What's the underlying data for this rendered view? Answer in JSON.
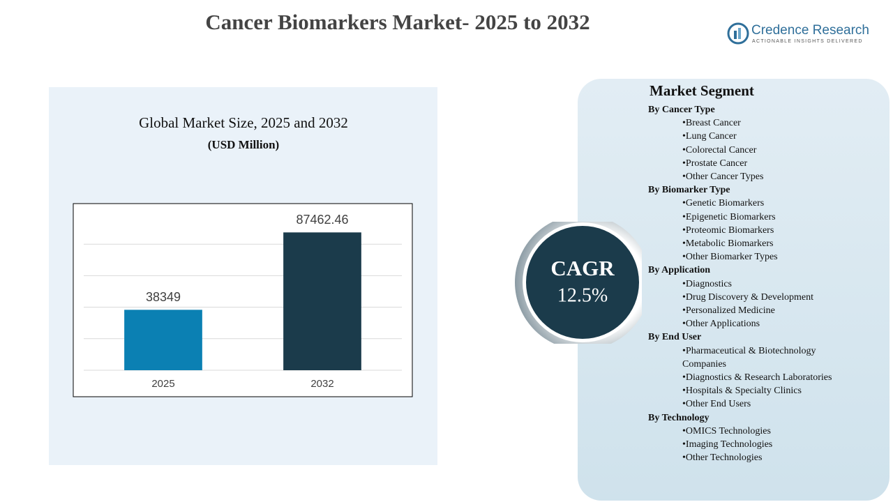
{
  "title": "Cancer Biomarkers Market- 2025 to 2032",
  "logo": {
    "name": "Credence Research",
    "tagline": "ACTIONABLE INSIGHTS DELIVERED"
  },
  "cagr": {
    "label": "CAGR",
    "value": "12.5%"
  },
  "segments": {
    "title": "Market Segment",
    "groups": [
      {
        "name": "By Cancer Type",
        "items": [
          "Breast Cancer",
          "Lung Cancer",
          "Colorectal Cancer",
          "Prostate Cancer",
          "Other Cancer Types"
        ]
      },
      {
        "name": "By Biomarker Type",
        "items": [
          "Genetic Biomarkers",
          "Epigenetic Biomarkers",
          "Proteomic Biomarkers",
          "Metabolic Biomarkers",
          "Other Biomarker Types"
        ]
      },
      {
        "name": "By Application",
        "items": [
          "Diagnostics",
          "Drug Discovery & Development",
          "Personalized Medicine",
          "Other Applications"
        ]
      },
      {
        "name": "By End User",
        "items": [
          "Pharmaceutical & Biotechnology Companies",
          "Diagnostics & Research Laboratories",
          "Hospitals & Specialty Clinics",
          "Other End Users"
        ]
      },
      {
        "name": "By Technology",
        "items": [
          "OMICS Technologies",
          "Imaging Technologies",
          "Other Technologies"
        ]
      }
    ]
  },
  "chart_data": {
    "type": "bar",
    "title": "Global Market Size, 2025 and 2032",
    "subtitle": "(USD Million)",
    "categories": [
      "2025",
      "2032"
    ],
    "values": [
      38349,
      87462.46
    ],
    "colors": [
      "#0b80b3",
      "#1b3b4b"
    ],
    "ylim": [
      0,
      100000
    ],
    "yticks": [
      0,
      20000,
      40000,
      60000,
      80000
    ],
    "grid": true
  }
}
